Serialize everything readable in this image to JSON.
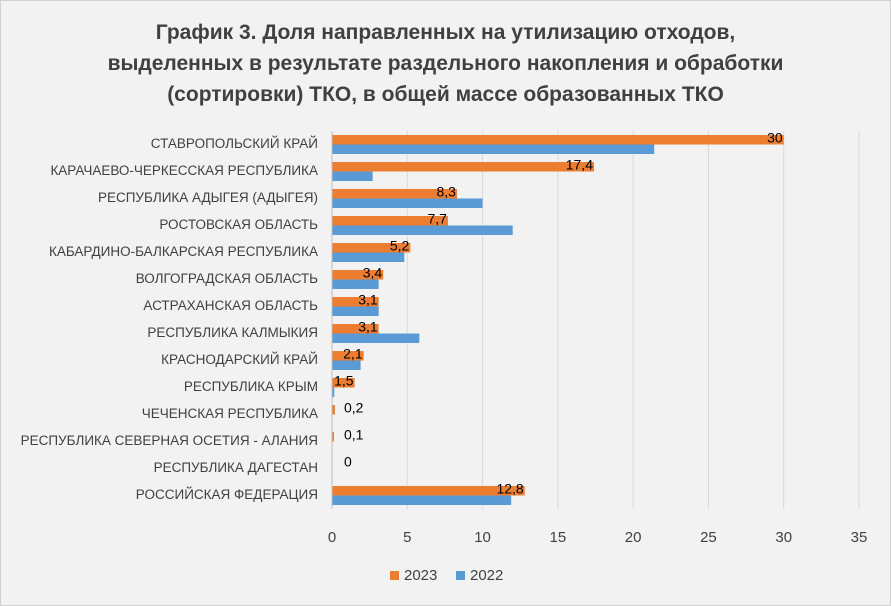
{
  "chart_data": {
    "type": "bar",
    "orientation": "horizontal",
    "title_lines": [
      "График 3. Доля направленных на утилизацию отходов,",
      "выделенных в результате раздельного накопления и обработки",
      "(сортировки) ТКО, в общей массе образованных ТКО"
    ],
    "categories": [
      "СТАВРОПОЛЬСКИЙ КРАЙ",
      "КАРАЧАЕВО-ЧЕРКЕССКАЯ РЕСПУБЛИКА",
      "РЕСПУБЛИКА АДЫГЕЯ (АДЫГЕЯ)",
      "РОСТОВСКАЯ ОБЛАСТЬ",
      "КАБАРДИНО-БАЛКАРСКАЯ РЕСПУБЛИКА",
      "ВОЛГОГРАДСКАЯ ОБЛАСТЬ",
      "АСТРАХАНСКАЯ ОБЛАСТЬ",
      "РЕСПУБЛИКА КАЛМЫКИЯ",
      "КРАСНОДАРСКИЙ КРАЙ",
      "РЕСПУБЛИКА КРЫМ",
      "ЧЕЧЕНСКАЯ РЕСПУБЛИКА",
      "РЕСПУБЛИКА СЕВЕРНАЯ ОСЕТИЯ - АЛАНИЯ",
      "РЕСПУБЛИКА ДАГЕСТАН",
      "РОССИЙСКАЯ ФЕДЕРАЦИЯ"
    ],
    "series": [
      {
        "name": "2023",
        "color": "#ed7d31",
        "values": [
          30,
          17.4,
          8.3,
          7.7,
          5.2,
          3.4,
          3.1,
          3.1,
          2.1,
          1.5,
          0.2,
          0.1,
          0,
          12.8
        ],
        "labels": [
          "30",
          "17,4",
          "8,3",
          "7,7",
          "5,2",
          "3,4",
          "3,1",
          "3,1",
          "2,1",
          "1,5",
          "0,2",
          "0,1",
          "0",
          "12,8"
        ]
      },
      {
        "name": "2022",
        "color": "#5b9bd5",
        "values": [
          21.4,
          2.7,
          10,
          12,
          4.8,
          3.1,
          3.1,
          5.8,
          1.9,
          0.15,
          0,
          0,
          0,
          11.9
        ]
      }
    ],
    "xlim": [
      0,
      35
    ],
    "xticks": [
      "0",
      "5",
      "10",
      "15",
      "20",
      "25",
      "30",
      "35"
    ],
    "xtick_values": [
      0,
      5,
      10,
      15,
      20,
      25,
      30,
      35
    ],
    "grid": true,
    "legend_position": "bottom-center",
    "legend": [
      "2023",
      "2022"
    ],
    "gridline_color": "#d9d9d9"
  }
}
